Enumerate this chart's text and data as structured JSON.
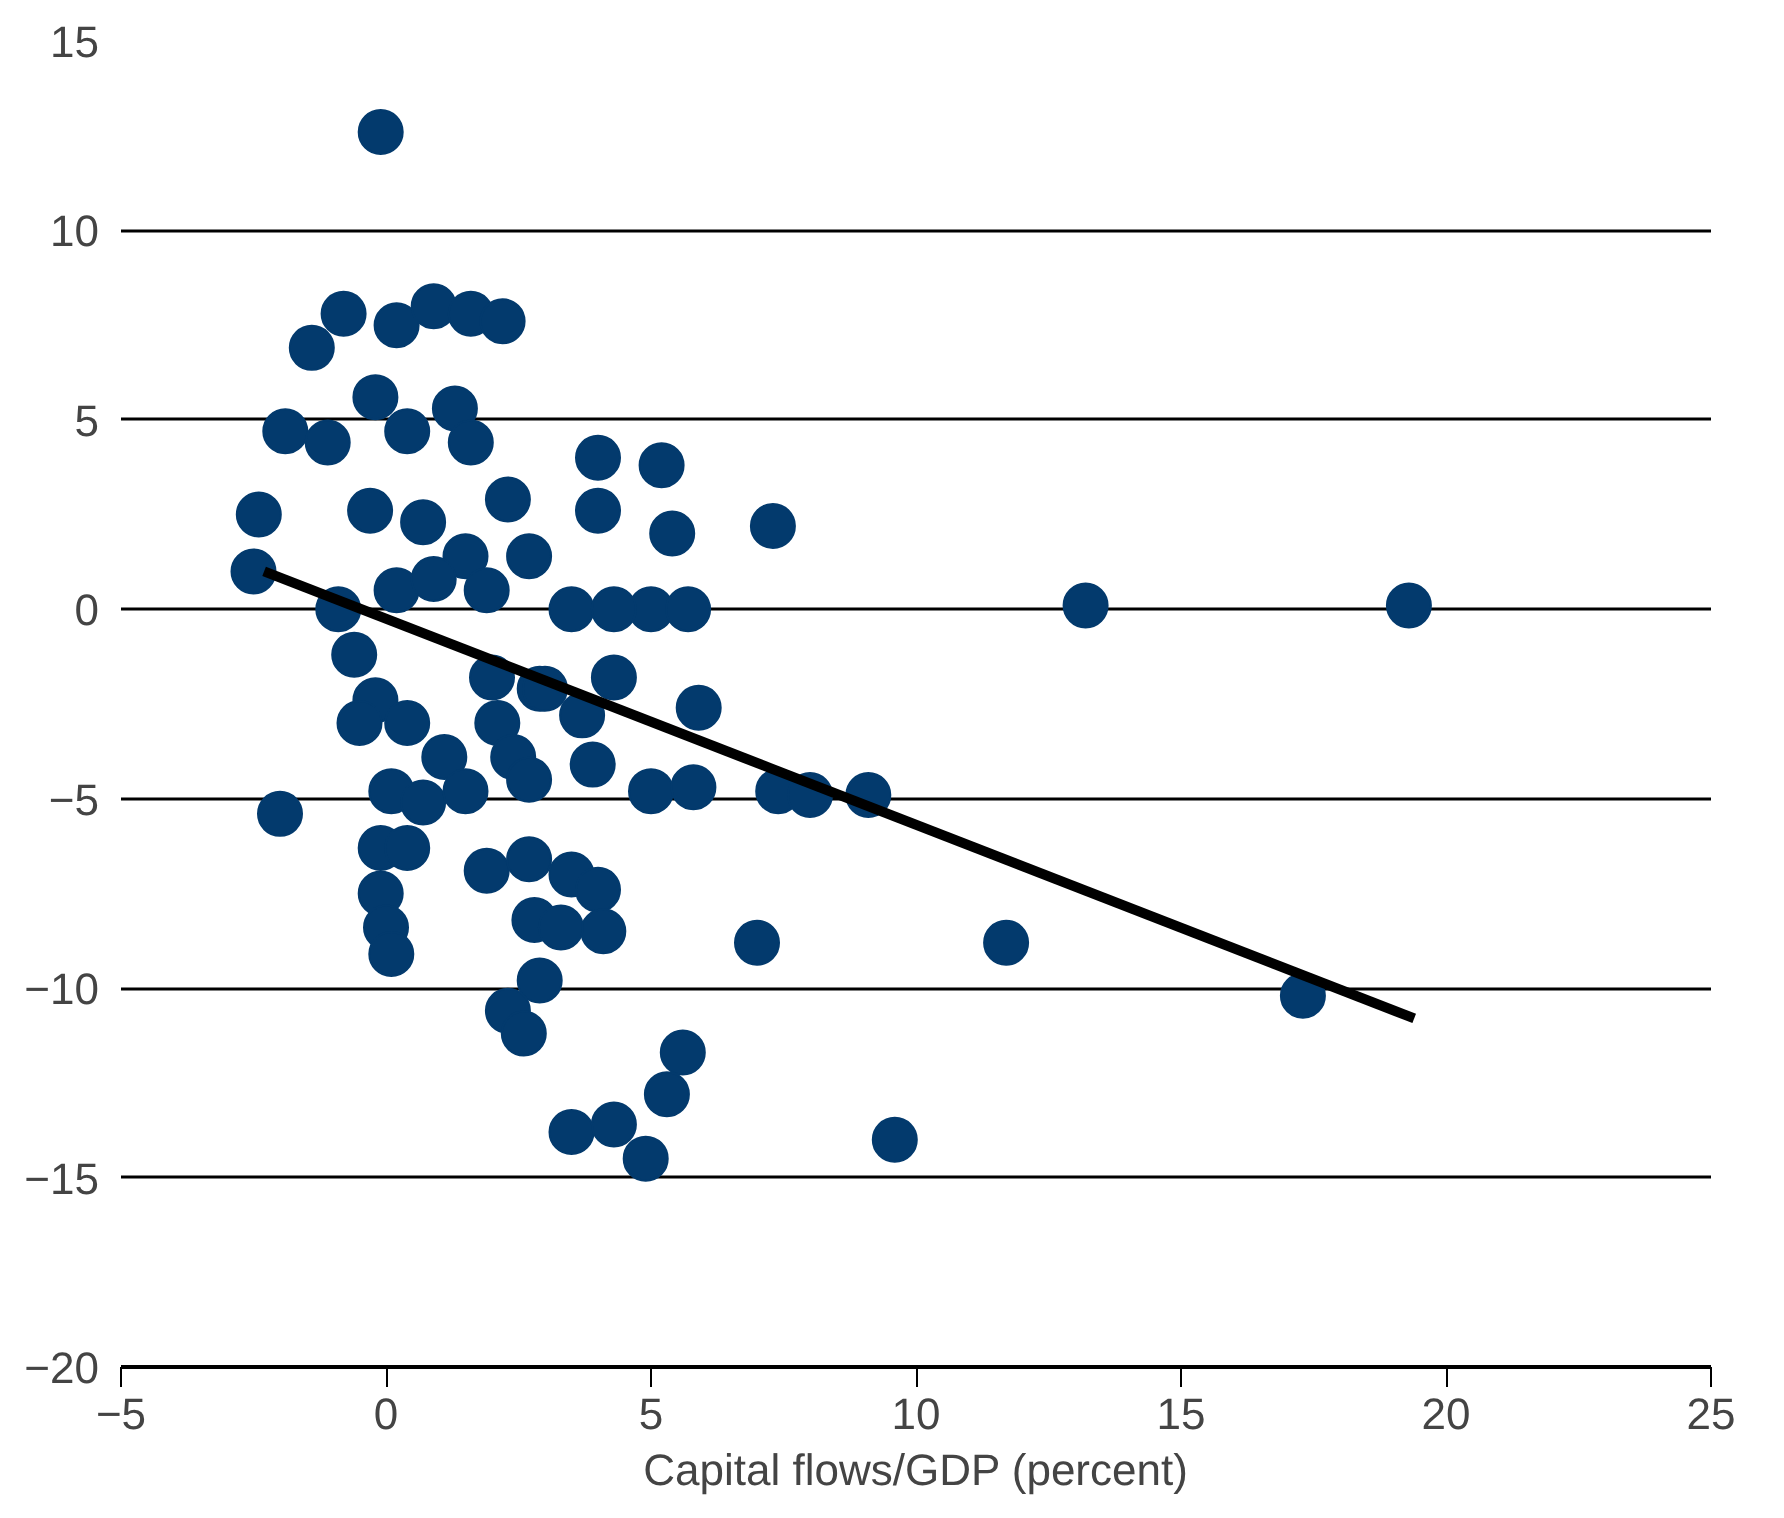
{
  "chart_data": {
    "type": "scatter",
    "xlabel": "Capital flows/GDP (percent)",
    "xlim": [
      -5,
      25
    ],
    "ylim": [
      -20,
      15
    ],
    "xticks": [
      {
        "value": -5,
        "label": "−5"
      },
      0,
      5,
      10,
      15,
      20,
      25
    ],
    "yticks": [
      {
        "value": -20,
        "label": "−20"
      },
      {
        "value": -15,
        "label": "−15"
      },
      {
        "value": -10,
        "label": "−10"
      },
      {
        "value": -5,
        "label": "−5"
      },
      0,
      5,
      10,
      15
    ],
    "grid": "y",
    "marker": "circle",
    "series": [
      {
        "color": "#033a6d",
        "x": [
          -0.1,
          -2.5,
          -2.4,
          -1.9,
          -2.0,
          -1.4,
          -0.8,
          -1.1,
          -0.9,
          0.2,
          0.9,
          1.6,
          2.2,
          1.3,
          1.6,
          2.3,
          2.7,
          -0.2,
          0.4,
          -0.3,
          0.7,
          1.5,
          0.2,
          0.9,
          1.9,
          -0.6,
          -0.2,
          -0.5,
          0.4,
          1.1,
          0.1,
          0.7,
          1.5,
          2.1,
          2.4,
          2.7,
          2.0,
          2.9,
          -0.1,
          0.4,
          -0.1,
          0.0,
          0.1,
          1.9,
          2.7,
          2.8,
          2.9,
          2.3,
          2.6,
          4.0,
          4.0,
          5.2,
          5.4,
          7.3,
          3.5,
          4.3,
          5.0,
          5.7,
          4.3,
          3.0,
          3.7,
          3.9,
          5.0,
          5.9,
          5.8,
          7.4,
          8.0,
          9.1,
          3.5,
          4.0,
          4.1,
          3.3,
          7.0,
          5.6,
          5.3,
          3.5,
          4.3,
          4.9,
          9.6,
          11.7,
          13.2,
          19.3,
          17.3
        ],
        "values": [
          12.6,
          1.0,
          2.5,
          4.7,
          -5.4,
          6.9,
          7.8,
          4.4,
          0,
          7.5,
          8.0,
          7.8,
          7.6,
          5.3,
          4.4,
          2.9,
          1.4,
          5.6,
          4.7,
          2.6,
          2.3,
          1.4,
          0.5,
          0.8,
          0.5,
          -1.2,
          -2.4,
          -3.0,
          -3.0,
          -3.9,
          -4.8,
          -5.1,
          -4.8,
          -3.0,
          -3.9,
          -4.5,
          -1.8,
          -2.1,
          -6.3,
          -6.3,
          -7.5,
          -8.4,
          -9.1,
          -6.9,
          -6.6,
          -8.2,
          -9.8,
          -10.6,
          -11.2,
          4.0,
          2.6,
          3.8,
          2.0,
          2.2,
          0,
          -1.8,
          0,
          0,
          0,
          -2.1,
          -2.8,
          -4.1,
          -4.8,
          -2.6,
          -4.7,
          -4.8,
          -4.9,
          -4.9,
          -7.0,
          -7.4,
          -8.5,
          -8.4,
          -8.8,
          -11.7,
          -12.8,
          -13.8,
          -13.6,
          -14.5,
          -14.0,
          -8.8,
          0.1,
          0.1,
          -10.2
        ]
      },
      {
        "type": "line",
        "color": "#000000",
        "marker": "none",
        "x": [
          -2.3,
          19.4
        ],
        "values": [
          1.0,
          -10.8
        ]
      }
    ]
  }
}
